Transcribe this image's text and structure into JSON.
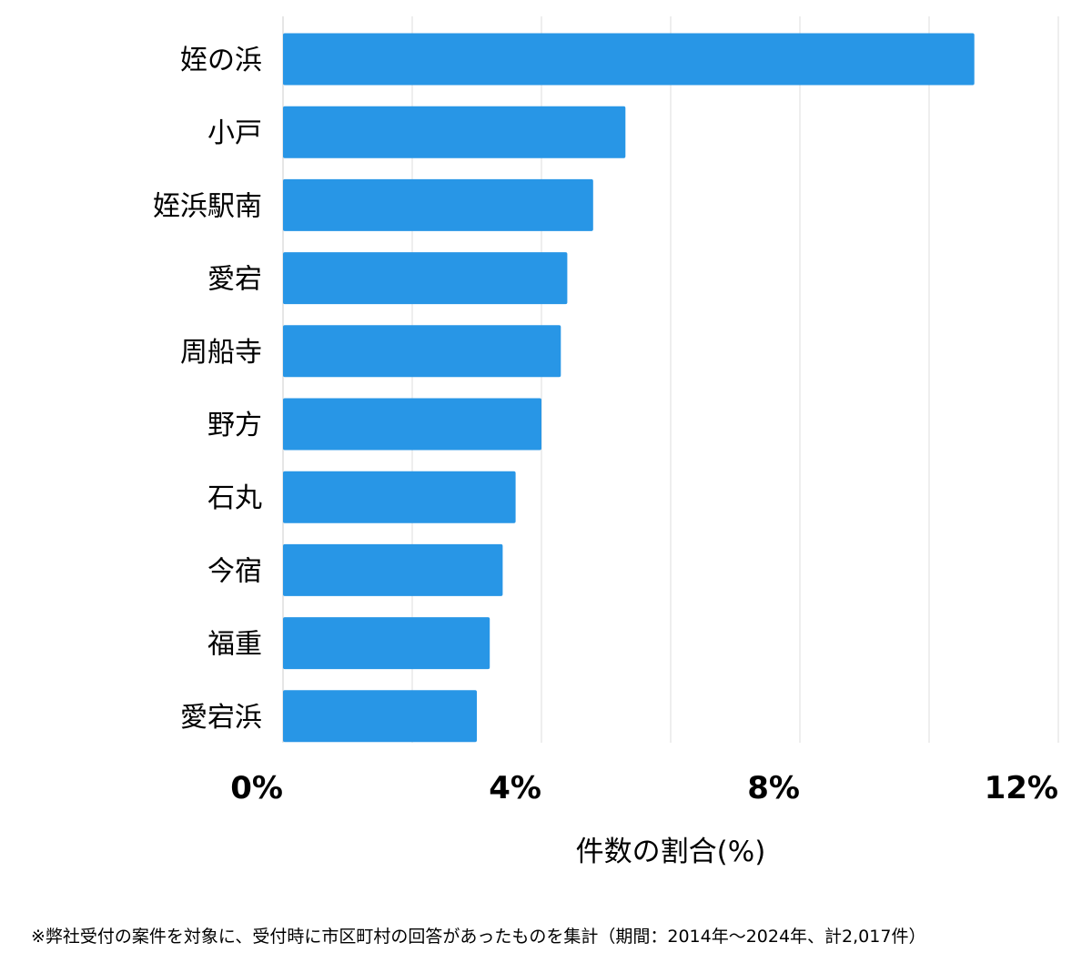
{
  "chart_data": {
    "type": "bar",
    "orientation": "horizontal",
    "categories": [
      "姪の浜",
      "小戸",
      "姪浜駅南",
      "愛宕",
      "周船寺",
      "野方",
      "石丸",
      "今宿",
      "福重",
      "愛宕浜"
    ],
    "values": [
      10.7,
      5.3,
      4.8,
      4.4,
      4.3,
      4.0,
      3.6,
      3.4,
      3.2,
      3.0
    ],
    "xlim": [
      0,
      12
    ],
    "xticks": [
      0,
      4,
      8,
      12
    ],
    "tick_labels": [
      "0%",
      "4%",
      "8%",
      "12%"
    ],
    "grid_step": 2,
    "xlabel": "件数の割合(%)",
    "ylabel": "",
    "bar_color": "#2896e6",
    "grid_color": "#dddddd"
  },
  "footnote": "※弊社受付の案件を対象に、受付時に市区町村の回答があったものを集計（期間：2014年〜2024年、計2,017件）"
}
